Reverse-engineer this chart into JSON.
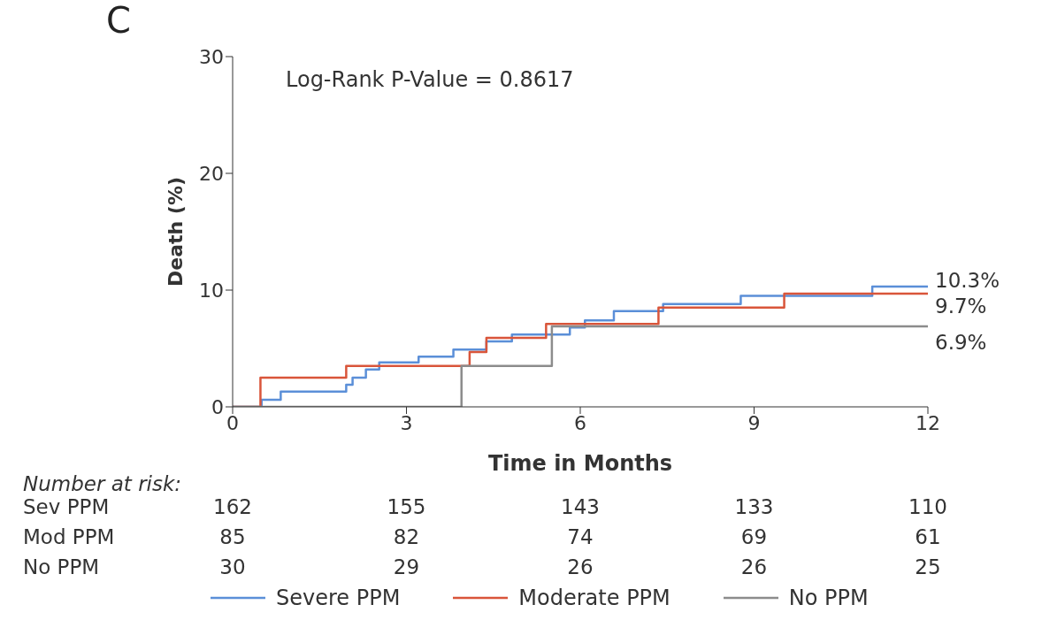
{
  "chart_data": {
    "type": "step",
    "title": "C",
    "xlabel": "Time in Months",
    "ylabel": "Death (%)",
    "xlim": [
      0,
      12
    ],
    "xticks": [
      0,
      3,
      6,
      9,
      12
    ],
    "ylim": [
      0,
      30
    ],
    "yticks": [
      0,
      10,
      20,
      30
    ],
    "legend": "bottom",
    "marker": "none",
    "line_style": "solid",
    "series": [
      {
        "name": "Severe PPM",
        "color": "#5b8fd8",
        "x": [
          0,
          0.5,
          0.83,
          1.96,
          2.07,
          2.3,
          2.53,
          3.21,
          3.81,
          4.38,
          4.82,
          5.82,
          6.08,
          6.58,
          7.43,
          8.77,
          11.04,
          12
        ],
        "values": [
          0,
          0.6,
          1.3,
          1.9,
          2.5,
          3.2,
          3.8,
          4.3,
          4.9,
          5.6,
          6.2,
          6.8,
          7.4,
          8.2,
          8.8,
          9.5,
          10.3,
          10.3
        ],
        "value_labels": [
          null,
          null,
          null,
          null,
          null,
          null,
          null,
          null,
          null,
          null,
          null,
          null,
          null,
          null,
          null,
          null,
          null,
          "10.3%"
        ]
      },
      {
        "name": "Moderate PPM",
        "color": "#d9553a",
        "x": [
          0,
          0.48,
          1.96,
          4.09,
          4.38,
          5.41,
          7.35,
          9.52,
          12
        ],
        "values": [
          0,
          2.5,
          3.5,
          4.7,
          5.9,
          7.1,
          8.5,
          9.7,
          9.7
        ],
        "value_labels": [
          null,
          null,
          null,
          null,
          null,
          null,
          null,
          null,
          "9.7%"
        ]
      },
      {
        "name": "No PPM",
        "color": "#8c8c8c",
        "x": [
          0,
          3.95,
          5.51,
          12
        ],
        "values": [
          0,
          3.5,
          6.9,
          6.9
        ],
        "value_labels": [
          null,
          null,
          null,
          "6.9%"
        ]
      }
    ],
    "annotations": [
      "Log-Rank P-Value = 0.8617",
      "Number at risk:",
      "Sev PPM",
      "162",
      "155",
      "143",
      "133",
      "110",
      "Mod PPM",
      "85",
      "82",
      "74",
      "69",
      "61",
      "No PPM",
      "30",
      "29",
      "26",
      "26",
      "25"
    ]
  }
}
